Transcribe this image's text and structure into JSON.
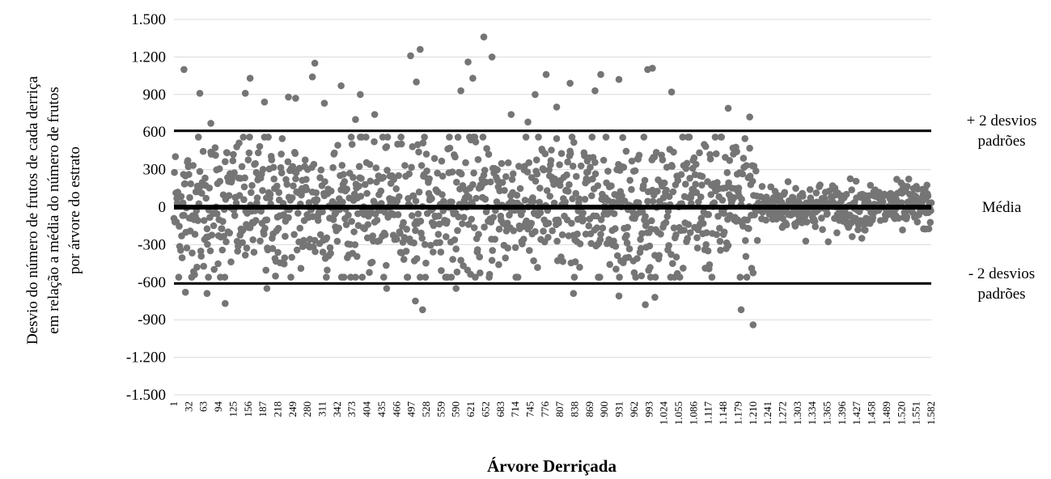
{
  "chart_data": {
    "type": "scatter",
    "title": "",
    "xlabel": "Árvore Derriçada",
    "ylabel_lines": [
      "Desvio do número de frutos de cada derriça",
      "em relação a média do número de frutos",
      "por árvore do estrato"
    ],
    "xlim": [
      1,
      1582
    ],
    "ylim": [
      -1500,
      1500
    ],
    "y_ticks": [
      1500,
      1200,
      900,
      600,
      300,
      0,
      -300,
      -600,
      -900,
      -1200,
      -1500
    ],
    "y_tick_labels": [
      "1.500",
      "1.200",
      "900",
      "600",
      "300",
      "0",
      "-300",
      "-600",
      "-900",
      "-1.200",
      "-1.500"
    ],
    "x_ticks": [
      1,
      32,
      63,
      94,
      125,
      156,
      187,
      218,
      249,
      280,
      311,
      342,
      373,
      404,
      435,
      466,
      497,
      528,
      559,
      590,
      621,
      652,
      683,
      714,
      745,
      776,
      807,
      838,
      869,
      900,
      931,
      962,
      993,
      1024,
      1055,
      1086,
      1117,
      1148,
      1179,
      1210,
      1241,
      1272,
      1303,
      1334,
      1365,
      1396,
      1427,
      1458,
      1489,
      1520,
      1551,
      1582
    ],
    "x_tick_labels": [
      "1",
      "32",
      "63",
      "94",
      "125",
      "156",
      "187",
      "218",
      "249",
      "280",
      "311",
      "342",
      "373",
      "404",
      "435",
      "466",
      "497",
      "528",
      "559",
      "590",
      "621",
      "652",
      "683",
      "714",
      "745",
      "776",
      "807",
      "838",
      "869",
      "900",
      "931",
      "962",
      "993",
      "1.024",
      "1.055",
      "1.086",
      "1.117",
      "1.148",
      "1.179",
      "1.210",
      "1.241",
      "1.272",
      "1.303",
      "1.334",
      "1.365",
      "1.396",
      "1.427",
      "1.458",
      "1.489",
      "1.520",
      "1.551",
      "1.582"
    ],
    "reference_lines": [
      {
        "y": 610,
        "label_lines": [
          "+ 2 desvios",
          "padrões"
        ]
      },
      {
        "y": 0,
        "label_lines": [
          "Média"
        ]
      },
      {
        "y": -610,
        "label_lines": [
          "- 2 desvios",
          "padrões"
        ]
      }
    ],
    "point_count": 1582,
    "segments": [
      {
        "from": 1,
        "to": 1220,
        "sd": 290
      },
      {
        "from": 1221,
        "to": 1582,
        "sd": 95
      }
    ],
    "highlight_points": [
      {
        "x": 22,
        "y": 1100
      },
      {
        "x": 55,
        "y": 910
      },
      {
        "x": 78,
        "y": 670
      },
      {
        "x": 150,
        "y": 910
      },
      {
        "x": 160,
        "y": 1030
      },
      {
        "x": 190,
        "y": 840
      },
      {
        "x": 240,
        "y": 880
      },
      {
        "x": 255,
        "y": 870
      },
      {
        "x": 290,
        "y": 1040
      },
      {
        "x": 295,
        "y": 1150
      },
      {
        "x": 315,
        "y": 830
      },
      {
        "x": 350,
        "y": 970
      },
      {
        "x": 380,
        "y": 700
      },
      {
        "x": 390,
        "y": 900
      },
      {
        "x": 420,
        "y": 740
      },
      {
        "x": 495,
        "y": 1210
      },
      {
        "x": 507,
        "y": 1000
      },
      {
        "x": 515,
        "y": 1260
      },
      {
        "x": 600,
        "y": 930
      },
      {
        "x": 615,
        "y": 1160
      },
      {
        "x": 625,
        "y": 1030
      },
      {
        "x": 648,
        "y": 1360
      },
      {
        "x": 665,
        "y": 1200
      },
      {
        "x": 705,
        "y": 740
      },
      {
        "x": 740,
        "y": 680
      },
      {
        "x": 755,
        "y": 900
      },
      {
        "x": 778,
        "y": 1060
      },
      {
        "x": 800,
        "y": 800
      },
      {
        "x": 828,
        "y": 990
      },
      {
        "x": 880,
        "y": 930
      },
      {
        "x": 892,
        "y": 1060
      },
      {
        "x": 930,
        "y": 1020
      },
      {
        "x": 990,
        "y": 1100
      },
      {
        "x": 1000,
        "y": 1110
      },
      {
        "x": 1040,
        "y": 920
      },
      {
        "x": 1158,
        "y": 790
      },
      {
        "x": 1203,
        "y": 720
      },
      {
        "x": 25,
        "y": -680
      },
      {
        "x": 70,
        "y": -690
      },
      {
        "x": 108,
        "y": -770
      },
      {
        "x": 195,
        "y": -650
      },
      {
        "x": 445,
        "y": -650
      },
      {
        "x": 505,
        "y": -750
      },
      {
        "x": 520,
        "y": -820
      },
      {
        "x": 590,
        "y": -650
      },
      {
        "x": 835,
        "y": -690
      },
      {
        "x": 930,
        "y": -710
      },
      {
        "x": 985,
        "y": -780
      },
      {
        "x": 1005,
        "y": -720
      },
      {
        "x": 1185,
        "y": -820
      },
      {
        "x": 1210,
        "y": -940
      }
    ]
  }
}
